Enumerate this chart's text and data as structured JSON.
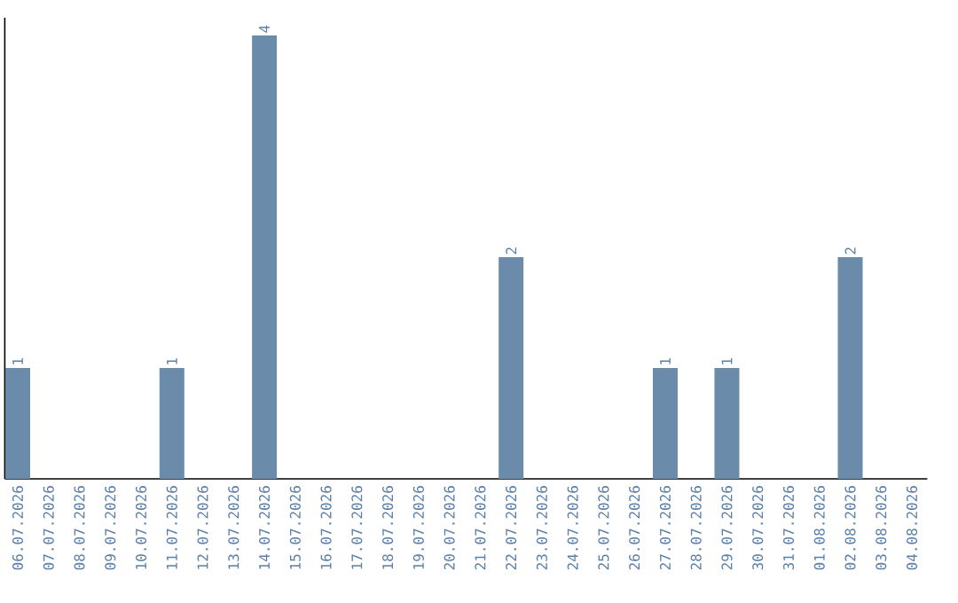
{
  "chart_data": {
    "type": "bar",
    "categories": [
      "06.07.2026",
      "07.07.2026",
      "08.07.2026",
      "09.07.2026",
      "10.07.2026",
      "11.07.2026",
      "12.07.2026",
      "13.07.2026",
      "14.07.2026",
      "15.07.2026",
      "16.07.2026",
      "17.07.2026",
      "18.07.2026",
      "19.07.2026",
      "20.07.2026",
      "21.07.2026",
      "22.07.2026",
      "23.07.2026",
      "24.07.2026",
      "25.07.2026",
      "26.07.2026",
      "27.07.2026",
      "28.07.2026",
      "29.07.2026",
      "30.07.2026",
      "31.07.2026",
      "01.08.2026",
      "02.08.2026",
      "03.08.2026",
      "04.08.2026"
    ],
    "values": [
      1,
      0,
      0,
      0,
      0,
      1,
      0,
      0,
      4,
      0,
      0,
      0,
      0,
      0,
      0,
      0,
      2,
      0,
      0,
      0,
      0,
      1,
      0,
      1,
      0,
      0,
      0,
      2,
      0,
      0
    ],
    "value_labels": [
      "1",
      null,
      null,
      null,
      null,
      "1",
      null,
      null,
      "4",
      null,
      null,
      null,
      null,
      null,
      null,
      null,
      "2",
      null,
      null,
      null,
      null,
      "1",
      null,
      "1",
      null,
      null,
      null,
      "2",
      null,
      null
    ],
    "color": "#6a8caa",
    "tick_labels": "x"
  }
}
